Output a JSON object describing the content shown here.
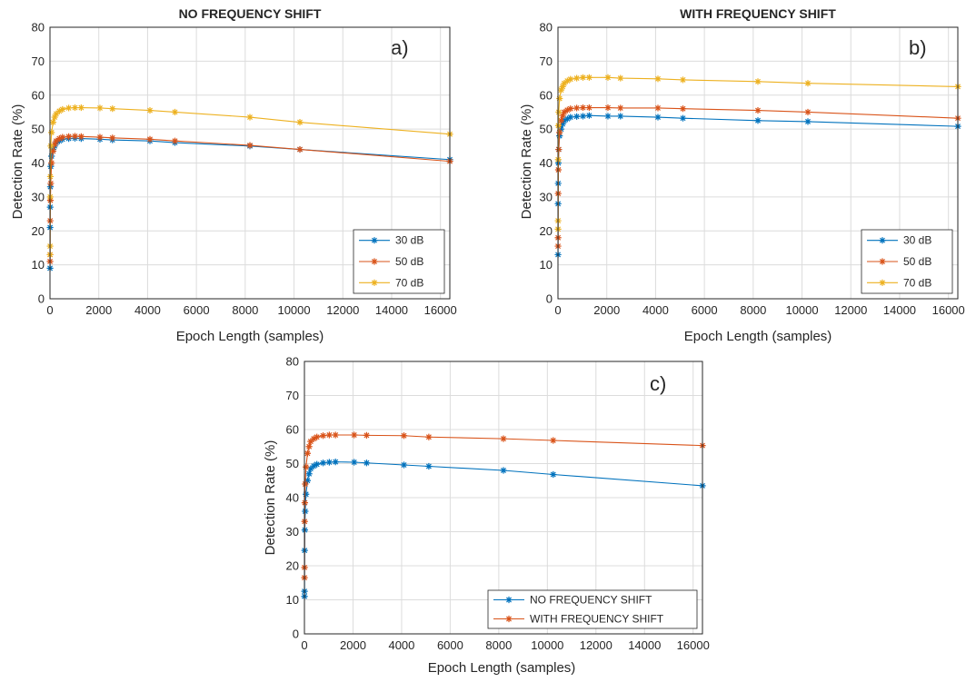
{
  "chart_data": [
    {
      "type": "line",
      "panel": "a)",
      "title": "NO FREQUENCY SHIFT",
      "xlabel": "Epoch Length (samples)",
      "ylabel": "Detection Rate (%)",
      "xlim": [
        0,
        16384
      ],
      "ylim": [
        0,
        80
      ],
      "xticks": [
        0,
        2000,
        4000,
        6000,
        8000,
        10000,
        12000,
        14000,
        16000
      ],
      "yticks": [
        0,
        10,
        20,
        30,
        40,
        50,
        60,
        70,
        80
      ],
      "grid": true,
      "legend_position": "bottom-right",
      "x": [
        2,
        4,
        8,
        16,
        32,
        64,
        128,
        192,
        256,
        384,
        512,
        768,
        1024,
        1280,
        2048,
        2560,
        4096,
        5120,
        8192,
        10240,
        16384
      ],
      "series": [
        {
          "name": "30 dB",
          "color": "#0072BD",
          "values": [
            9,
            21,
            27,
            33,
            39,
            42,
            44,
            45,
            46,
            46.5,
            47,
            47.2,
            47.3,
            47.2,
            47,
            46.8,
            46.5,
            46,
            45,
            44,
            41
          ]
        },
        {
          "name": "50 dB",
          "color": "#D95319",
          "values": [
            11,
            13,
            23,
            29,
            34,
            40,
            43.5,
            45.5,
            46.5,
            47.2,
            47.6,
            47.8,
            47.9,
            47.8,
            47.6,
            47.4,
            47,
            46.5,
            45.2,
            44,
            40.5
          ]
        },
        {
          "name": "70 dB",
          "color": "#EDB120",
          "values": [
            13,
            15.5,
            30,
            36,
            45,
            49,
            52,
            53.5,
            54.5,
            55.3,
            55.8,
            56.2,
            56.3,
            56.3,
            56.2,
            56,
            55.5,
            55,
            53.5,
            52,
            48.5
          ]
        }
      ]
    },
    {
      "type": "line",
      "panel": "b)",
      "title": "WITH FREQUENCY SHIFT",
      "xlabel": "Epoch Length (samples)",
      "ylabel": "Detection Rate (%)",
      "xlim": [
        0,
        16384
      ],
      "ylim": [
        0,
        80
      ],
      "xticks": [
        0,
        2000,
        4000,
        6000,
        8000,
        10000,
        12000,
        14000,
        16000
      ],
      "yticks": [
        0,
        10,
        20,
        30,
        40,
        50,
        60,
        70,
        80
      ],
      "grid": true,
      "legend_position": "bottom-right",
      "x": [
        2,
        4,
        8,
        16,
        32,
        64,
        128,
        192,
        256,
        384,
        512,
        768,
        1024,
        1280,
        2048,
        2560,
        4096,
        5120,
        8192,
        10240,
        16384
      ],
      "series": [
        {
          "name": "30 dB",
          "color": "#0072BD",
          "values": [
            13,
            28,
            34,
            40,
            44,
            48,
            50,
            51.5,
            52.5,
            53,
            53.5,
            53.7,
            53.8,
            54,
            53.8,
            53.8,
            53.5,
            53.2,
            52.5,
            52.2,
            50.8
          ]
        },
        {
          "name": "50 dB",
          "color": "#D95319",
          "values": [
            15.5,
            18,
            31,
            38,
            44,
            49,
            52.5,
            54,
            55,
            55.6,
            56,
            56.2,
            56.3,
            56.3,
            56.3,
            56.2,
            56.2,
            56,
            55.5,
            55,
            53.2
          ]
        },
        {
          "name": "70 dB",
          "color": "#EDB120",
          "values": [
            20.5,
            23,
            41,
            51,
            55,
            59,
            61.5,
            62.5,
            63.5,
            64.2,
            64.7,
            65,
            65.2,
            65.2,
            65.2,
            65,
            64.8,
            64.5,
            64,
            63.5,
            62.5
          ]
        }
      ]
    },
    {
      "type": "line",
      "panel": "c)",
      "title": "",
      "xlabel": "Epoch Length (samples)",
      "ylabel": "Detection Rate (%)",
      "xlim": [
        0,
        16384
      ],
      "ylim": [
        0,
        80
      ],
      "xticks": [
        0,
        2000,
        4000,
        6000,
        8000,
        10000,
        12000,
        14000,
        16000
      ],
      "yticks": [
        0,
        10,
        20,
        30,
        40,
        50,
        60,
        70,
        80
      ],
      "grid": true,
      "legend_position": "bottom-right",
      "x": [
        2,
        4,
        8,
        16,
        32,
        64,
        128,
        192,
        256,
        384,
        512,
        768,
        1024,
        1280,
        2048,
        2560,
        4096,
        5120,
        8192,
        10240,
        16384
      ],
      "series": [
        {
          "name": "NO FREQUENCY SHIFT",
          "color": "#0072BD",
          "values": [
            11,
            12.5,
            24.5,
            30.5,
            36,
            41,
            45,
            47,
            48.5,
            49.3,
            49.8,
            50.2,
            50.4,
            50.5,
            50.4,
            50.2,
            49.6,
            49.2,
            48,
            46.8,
            43.5
          ]
        },
        {
          "name": "WITH FREQUENCY SHIFT",
          "color": "#D95319",
          "values": [
            16.5,
            19.5,
            33,
            38.5,
            44,
            49,
            53,
            55,
            56.5,
            57.3,
            57.8,
            58.2,
            58.4,
            58.4,
            58.4,
            58.3,
            58.2,
            57.8,
            57.3,
            56.8,
            55.3
          ]
        }
      ]
    }
  ]
}
